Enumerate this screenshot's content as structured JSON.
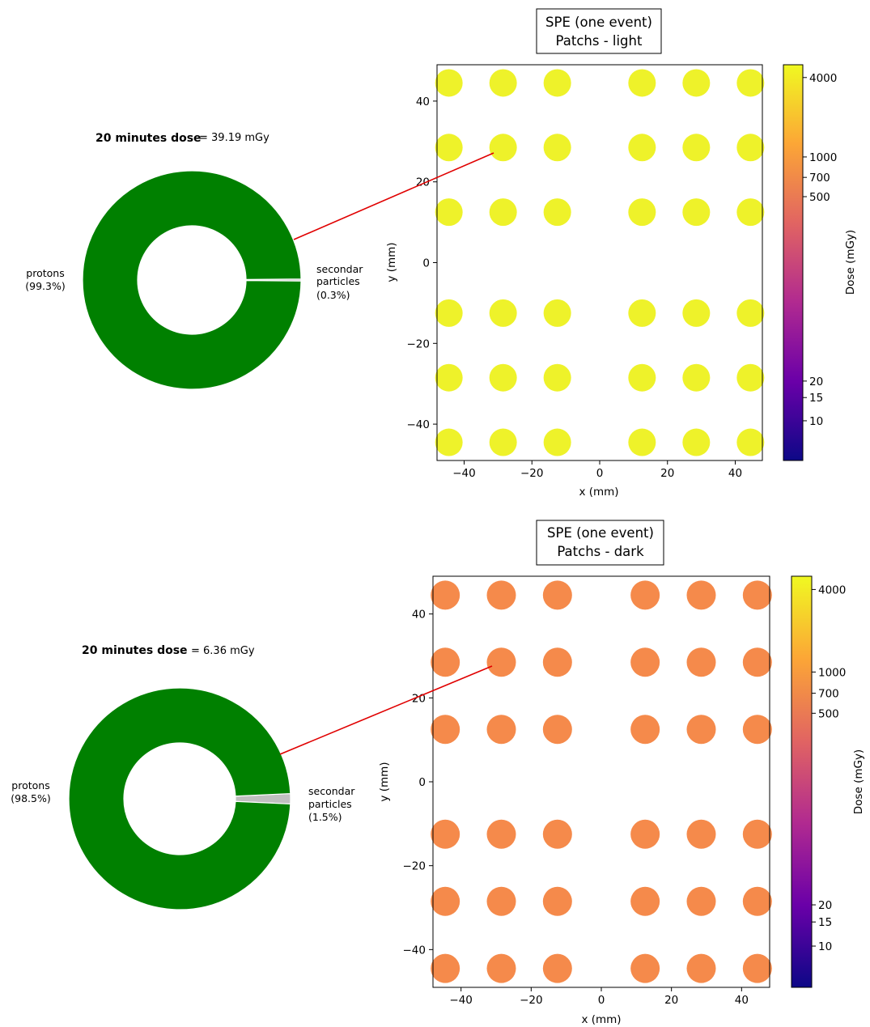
{
  "chart_data": [
    {
      "type": "pie",
      "dose_label": "20 minutes dose",
      "dose_value": "= 39.19 mGy",
      "slices": [
        {
          "name": "protons",
          "percent_label": "(99.3%)",
          "value": 99.3,
          "color": "#008000"
        },
        {
          "name": "secondary particles",
          "label_line1": "secondar",
          "label_line2": "particles",
          "percent_label": "(0.3%)",
          "value": 0.3,
          "color": "#c0c0c0"
        }
      ]
    },
    {
      "type": "scatter",
      "title_line1": "SPE (one event)",
      "title_line2": "Patchs - light",
      "xlabel": "x (mm)",
      "ylabel": "y (mm)",
      "xlim": [
        -48,
        48
      ],
      "ylim": [
        -49,
        49
      ],
      "xticks": [
        -40,
        -20,
        0,
        20,
        40
      ],
      "yticks": [
        -40,
        -20,
        0,
        20,
        40
      ],
      "x": [
        -44.5,
        -28.5,
        -12.5,
        12.5,
        28.5,
        44.5
      ],
      "y": [
        44.5,
        28.5,
        12.5,
        -12.5,
        -28.5,
        -44.5
      ],
      "point_color": "#eef22a",
      "colorbar": {
        "label": "Dose (mGy)",
        "scale": "log",
        "range": [
          5,
          5000
        ],
        "ticks": [
          10,
          15,
          20,
          500,
          700,
          1000,
          4000
        ],
        "colormap": [
          "#0d0887",
          "#6a00a8",
          "#b12a90",
          "#e16462",
          "#fca636",
          "#f0f921"
        ]
      }
    },
    {
      "type": "pie",
      "dose_label": "20 minutes dose",
      "dose_value": "= 6.36 mGy",
      "slices": [
        {
          "name": "protons",
          "percent_label": "(98.5%)",
          "value": 98.5,
          "color": "#008000"
        },
        {
          "name": "secondary particles",
          "label_line1": "secondar",
          "label_line2": "particles",
          "percent_label": "(1.5%)",
          "value": 1.5,
          "color": "#c0c0c0"
        }
      ]
    },
    {
      "type": "scatter",
      "title_line1": "SPE (one event)",
      "title_line2": "Patchs - dark",
      "xlabel": "x (mm)",
      "ylabel": "y (mm)",
      "xlim": [
        -48,
        48
      ],
      "ylim": [
        -49,
        49
      ],
      "xticks": [
        -40,
        -20,
        0,
        20,
        40
      ],
      "yticks": [
        -40,
        -20,
        0,
        20,
        40
      ],
      "x": [
        -44.5,
        -28.5,
        -12.5,
        12.5,
        28.5,
        44.5
      ],
      "y": [
        44.5,
        28.5,
        12.5,
        -12.5,
        -28.5,
        -44.5
      ],
      "point_color": "#f58a4b",
      "colorbar": {
        "label": "Dose (mGy)",
        "scale": "log",
        "range": [
          5,
          5000
        ],
        "ticks": [
          10,
          15,
          20,
          500,
          700,
          1000,
          4000
        ],
        "colormap": [
          "#0d0887",
          "#6a00a8",
          "#b12a90",
          "#e16462",
          "#fca636",
          "#f0f921"
        ]
      }
    }
  ],
  "connector_color": "#e00000"
}
